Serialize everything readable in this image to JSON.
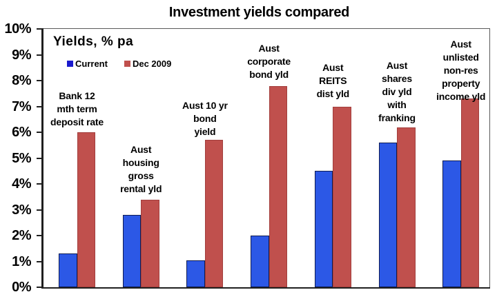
{
  "title": "Investment yields compared",
  "colors": {
    "current_fill": "#2C58E6",
    "current_border": "#0E1B52",
    "dec2009_fill": "#C0504D",
    "dec2009_border": "#A23E3C",
    "axis": "#1f1f1f",
    "plot_border": "#595959",
    "text": "#000000",
    "background": "#FFFFFF"
  },
  "chart_data": {
    "type": "bar",
    "title": "Investment yields compared",
    "inner_label": "Yields, % pa",
    "xlabel": "",
    "ylabel": "Yields, % pa",
    "ylim": [
      0,
      10
    ],
    "yticks": [
      0,
      1,
      2,
      3,
      4,
      5,
      6,
      7,
      8,
      9,
      10
    ],
    "ytick_suffix": "%",
    "grid": false,
    "legend_position": "inside-top-left",
    "categories": [
      {
        "name": "Bank 12 mth term deposit rate",
        "lines": [
          "Bank 12",
          "mth term",
          "deposit rate"
        ]
      },
      {
        "name": "Aust housing gross rental yld",
        "lines": [
          "Aust",
          "housing",
          "gross",
          "rental yld"
        ]
      },
      {
        "name": "Aust 10 yr bond yield",
        "lines": [
          "Aust 10 yr",
          "bond",
          "yield"
        ]
      },
      {
        "name": "Aust corporate bond yld",
        "lines": [
          "Aust",
          "corporate",
          "bond yld"
        ]
      },
      {
        "name": "Aust REITS dist yld",
        "lines": [
          "Aust",
          "REITS",
          "dist yld"
        ]
      },
      {
        "name": "Aust shares div yld with franking",
        "lines": [
          "Aust",
          "shares",
          "div yld",
          "with",
          "franking"
        ]
      },
      {
        "name": "Aust unlisted non-res property income yld",
        "lines": [
          "Aust",
          "unlisted",
          "non-res",
          "property",
          "income yld"
        ]
      }
    ],
    "series": [
      {
        "name": "Current",
        "key": "current",
        "values": [
          1.3,
          2.8,
          1.05,
          2.0,
          4.5,
          5.6,
          4.9
        ],
        "fill": "#2C58E6",
        "border": "#0E1B52",
        "legend_swatch": "#1A1ACD"
      },
      {
        "name": "Dec 2009",
        "key": "dec2009",
        "values": [
          6.0,
          3.4,
          5.7,
          7.8,
          7.0,
          6.2,
          7.3
        ],
        "fill": "#C0504D",
        "border": "#A23E3C",
        "legend_swatch": "#C0504D"
      }
    ]
  }
}
